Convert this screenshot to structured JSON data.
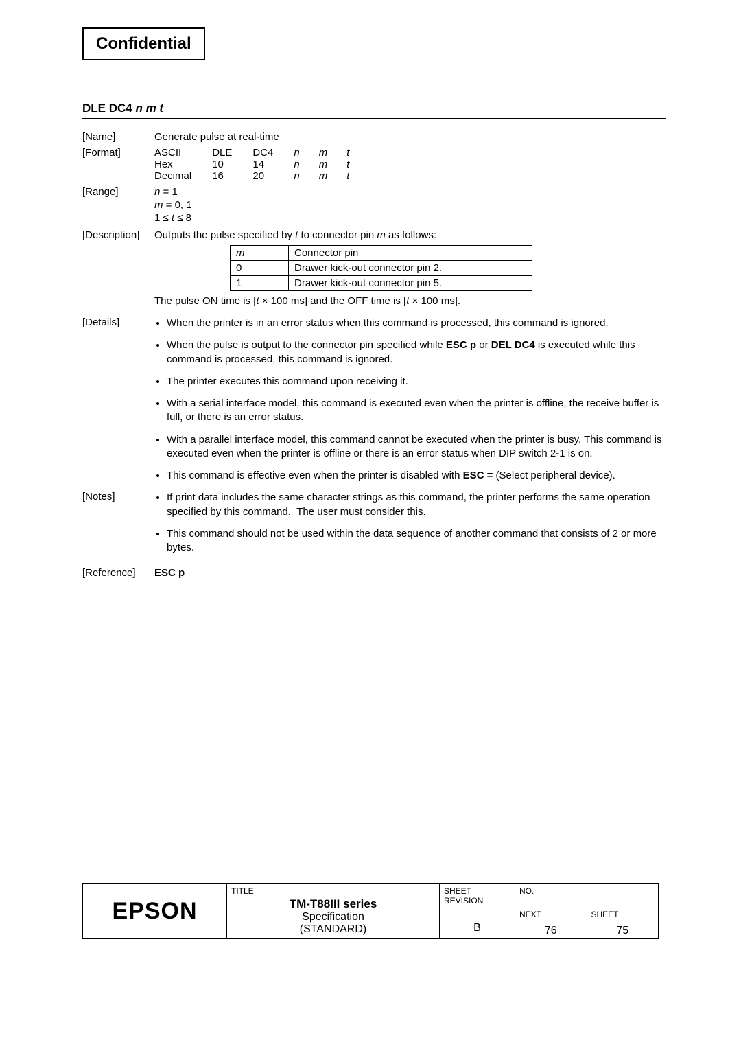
{
  "confidential": "Confidential",
  "command": {
    "prefix": "DLE DC4 ",
    "params": "n m t"
  },
  "name": {
    "label": "[Name]",
    "value": "Generate pulse at real-time"
  },
  "format": {
    "label": "[Format]",
    "rows": [
      {
        "c0": "ASCII",
        "c1": "DLE",
        "c2": "DC4",
        "c3": "n",
        "c4": "m",
        "c5": "t"
      },
      {
        "c0": "Hex",
        "c1": "10",
        "c2": "14",
        "c3": "n",
        "c4": "m",
        "c5": "t"
      },
      {
        "c0": "Decimal",
        "c1": "16",
        "c2": "20",
        "c3": "n",
        "c4": "m",
        "c5": "t"
      }
    ]
  },
  "range": {
    "label": "[Range]",
    "lines": [
      {
        "html": "<span class='italic'>n</span> = 1"
      },
      {
        "html": "<span class='italic'>m</span> = 0, 1"
      },
      {
        "html": "1 ≤ <span class='italic'>t</span> ≤ 8"
      }
    ]
  },
  "description": {
    "label": "[Description]",
    "intro_pre": "Outputs the pulse specified by ",
    "intro_t": "t",
    "intro_mid": " to connector pin ",
    "intro_m": "m",
    "intro_post": " as follows:",
    "table": {
      "headers": {
        "m": "m",
        "pin": "Connector pin"
      },
      "rows": [
        {
          "m": "0",
          "pin": "Drawer kick-out connector pin 2."
        },
        {
          "m": "1",
          "pin": "Drawer kick-out connector pin 5."
        }
      ]
    },
    "pulse_pre": "The pulse ON time is [",
    "pulse_t1": "t",
    "pulse_mid": " × 100 ms] and the OFF time is [",
    "pulse_t2": "t",
    "pulse_post": " × 100 ms]."
  },
  "details": {
    "label": "[Details]",
    "items": [
      "When the printer is in an error status when this command is processed, this command is ignored.",
      "When the pulse is output to the connector pin specified while <b>ESC p</b> or <b>DEL DC4</b> is executed while this command is processed, this command is ignored.",
      "The printer executes this command upon receiving it.",
      "With a serial interface model, this command is executed even when the printer is offline, the receive buffer is full, or there is an error status.",
      "With a parallel interface model, this command cannot be executed when the printer is busy. This command is executed even when the printer is offline or there is an error status when DIP switch 2-1 is on.",
      "This command is effective even when the printer is disabled with <b>ESC =</b> (Select peripheral device)."
    ]
  },
  "notes": {
    "label": "[Notes]",
    "items": [
      "If print data includes the same character strings as this command, the printer performs the same operation specified by this command.&nbsp;&nbsp;The user must consider this.",
      "This command should not be used within the data sequence of another command that consists of 2 or more bytes."
    ]
  },
  "reference": {
    "label": "[Reference]",
    "value": "ESC p"
  },
  "footer": {
    "logo": "EPSON",
    "title_label": "TITLE",
    "title_main": "TM-T88III series",
    "title_sub1": "Specification",
    "title_sub2": "(STANDARD)",
    "rev_label1": "SHEET",
    "rev_label2": "REVISION",
    "rev_value": "B",
    "no_label": "NO.",
    "next_label": "NEXT",
    "next_value": "76",
    "sheet_label": "SHEET",
    "sheet_value": "75"
  }
}
